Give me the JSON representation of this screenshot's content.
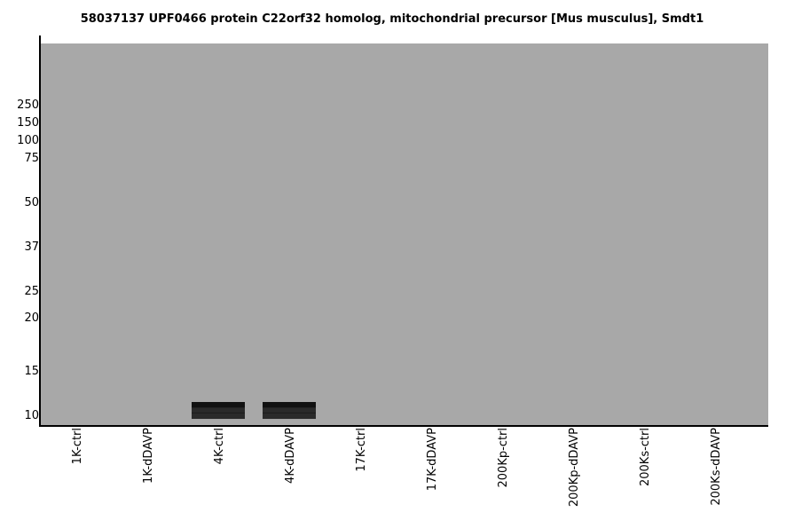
{
  "chart_data": {
    "type": "western_blot",
    "title": "58037137 UPF0466 protein C22orf32 homolog, mitochondrial precursor [Mus musculus], Smdt1",
    "y_scale": "log",
    "y_ticks": [
      "250",
      "150",
      "100",
      "75",
      "50",
      "37",
      "25",
      "20",
      "15",
      "10"
    ],
    "y_tick_values": [
      250,
      150,
      100,
      75,
      50,
      37,
      25,
      20,
      15,
      10
    ],
    "lanes": [
      "1K-ctrl",
      "1K-dDAVP",
      "4K-ctrl",
      "4K-dDAVP",
      "17K-ctrl",
      "17K-dDAVP",
      "200Kp-ctrl",
      "200Kp-dDAVP",
      "200Ks-ctrl",
      "200Ks-dDAVP"
    ],
    "bands": [
      {
        "lane": "4K-ctrl",
        "kda_top": 11.2,
        "kda_bottom": 9.6
      },
      {
        "lane": "4K-dDAVP",
        "kda_top": 11.2,
        "kda_bottom": 9.6
      }
    ],
    "background_color": "#a8a8a8",
    "band_color": "#111111"
  }
}
